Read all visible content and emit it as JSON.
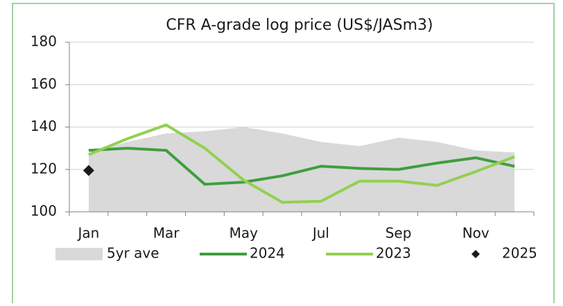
{
  "chart_data": {
    "type": "line",
    "title": "CFR A-grade log price (US$/JASm3)",
    "categories": [
      "Jan",
      null,
      "Mar",
      null,
      "May",
      null,
      "Jul",
      null,
      "Sep",
      null,
      "Nov",
      null
    ],
    "series": [
      {
        "name": "5yr ave",
        "kind": "area",
        "color": "#d9d9d9",
        "values": [
          128,
          133,
          137,
          138,
          140,
          137,
          133,
          131,
          135,
          133,
          129,
          128
        ]
      },
      {
        "name": "2024",
        "kind": "line",
        "color": "#3f9e3f",
        "values": [
          129,
          130,
          129,
          113,
          114,
          117,
          121.5,
          120.5,
          120,
          123,
          125.5,
          121.5
        ]
      },
      {
        "name": "2023",
        "kind": "line",
        "color": "#92d050",
        "values": [
          127,
          134.5,
          141,
          130,
          115,
          104.5,
          105,
          114.5,
          114.5,
          112.5,
          119,
          126
        ]
      },
      {
        "name": "2025",
        "kind": "scatter",
        "color": "#1a1a1a",
        "values": [
          119.5,
          null,
          null,
          null,
          null,
          null,
          null,
          null,
          null,
          null,
          null,
          null
        ]
      }
    ],
    "ylim": [
      100,
      180
    ],
    "yticks": [
      100,
      120,
      140,
      160,
      180
    ],
    "grid": true,
    "legend": "bottom"
  }
}
